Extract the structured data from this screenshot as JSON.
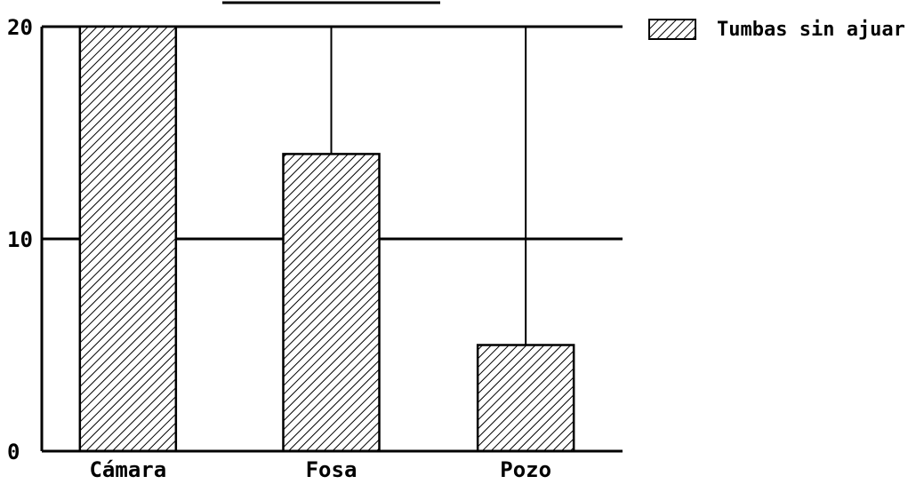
{
  "chart_data": {
    "type": "bar",
    "categories": [
      "Cámara",
      "Fosa",
      "Pozo"
    ],
    "series": [
      {
        "name": "Tumbas sin ajuar",
        "values": [
          20,
          14,
          5
        ]
      }
    ],
    "yticks": [
      "0",
      "10",
      "20"
    ],
    "ylim": [
      0,
      20
    ],
    "grid": true,
    "legend_position": "top-right",
    "bar_pattern": "diagonal-hatch",
    "colors": {
      "ink": "#000000",
      "background": "#ffffff"
    }
  }
}
